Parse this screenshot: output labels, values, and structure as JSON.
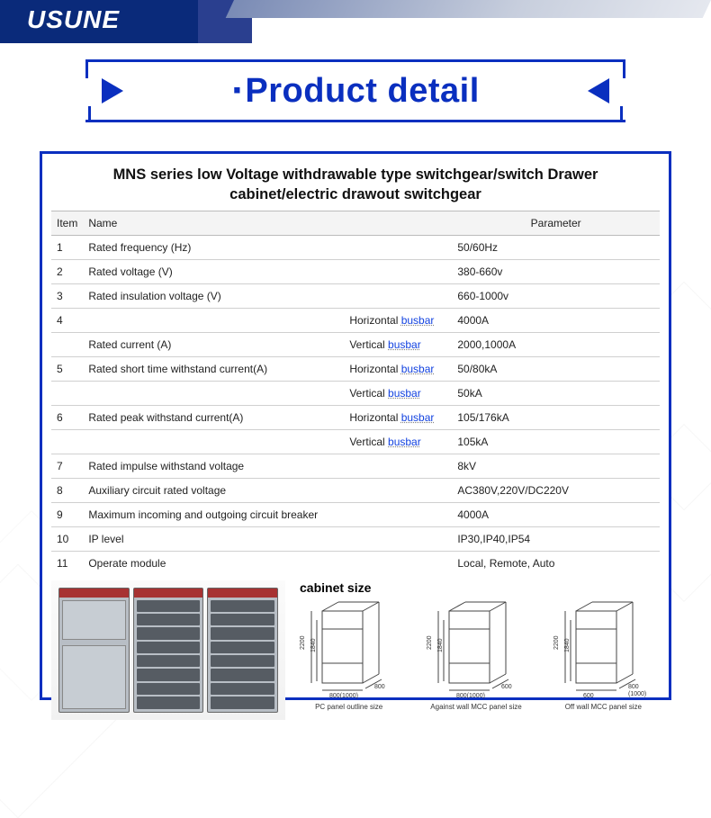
{
  "brand": {
    "logo_text": "USUNE",
    "logo_color": "#ffffff",
    "header_bg": "#0a2a7a"
  },
  "banner": {
    "title": "Product detail",
    "color": "#0a2fbf",
    "title_fontsize": 38,
    "frame_color": "#0a2fbf"
  },
  "spec_box": {
    "border_color": "#0a2fbf",
    "title": "MNS series low Voltage withdrawable type switchgear/switch Drawer cabinet/electric drawout switchgear",
    "title_fontsize": 16.5,
    "columns": {
      "item": "Item",
      "name": "Name",
      "parameter": "Parameter"
    },
    "sub_label_prefix": "Horizontal",
    "sub_label_prefix2": "Vertical",
    "busbar_word": "busbar",
    "rows": [
      {
        "item": "1",
        "name": "Rated frequency (Hz)",
        "parameter": "50/60Hz"
      },
      {
        "item": "2",
        "name": "Rated voltage (V)",
        "parameter": "380-660v"
      },
      {
        "item": "3",
        "name": "Rated insulation voltage (V)",
        "parameter": "660-1000v"
      },
      {
        "item": "4",
        "name": "Rated current (A)",
        "subrows": [
          {
            "sub": "Horizontal",
            "parameter": "4000A"
          },
          {
            "sub": "Vertical",
            "parameter": "2000,1000A"
          }
        ]
      },
      {
        "item": "5",
        "name": "Rated short time withstand current(A)",
        "subrows": [
          {
            "sub": "Horizontal",
            "parameter": "50/80kA"
          },
          {
            "sub": "Vertical",
            "parameter": "50kA"
          }
        ]
      },
      {
        "item": "6",
        "name": "Rated peak withstand current(A)",
        "subrows": [
          {
            "sub": "Horizontal",
            "parameter": "105/176kA"
          },
          {
            "sub": "Vertical",
            "parameter": "105kA"
          }
        ]
      },
      {
        "item": "7",
        "name": "Rated impulse withstand voltage",
        "parameter": "8kV"
      },
      {
        "item": "8",
        "name": "Auxiliary circuit rated voltage",
        "parameter": "AC380V,220V/DC220V"
      },
      {
        "item": "9",
        "name": "Maximum incoming and outgoing circuit breaker",
        "parameter": "4000A"
      },
      {
        "item": "10",
        "name": "IP level",
        "parameter": "IP30,IP40,IP54"
      },
      {
        "item": "11",
        "name": "Operate module",
        "parameter": "Local, Remote, Auto"
      }
    ]
  },
  "cabinet_size": {
    "title": "cabinet size",
    "height_labels": [
      "2200",
      "1840"
    ],
    "diagrams": [
      {
        "width_label": "800(1000)",
        "depth_label": "800",
        "caption": "PC panel outline size"
      },
      {
        "width_label": "800(1000)",
        "depth_label": "600",
        "caption": "Against wall MCC panel size"
      },
      {
        "width_label": "600",
        "depth_label": "800\n(1000)",
        "caption": "Off wall MCC panel size"
      }
    ],
    "line_color": "#444444"
  },
  "cabinet_photo": {
    "accent_color": "#a73232",
    "body_color": "#b8bec5",
    "drawer_color": "#565c63"
  }
}
